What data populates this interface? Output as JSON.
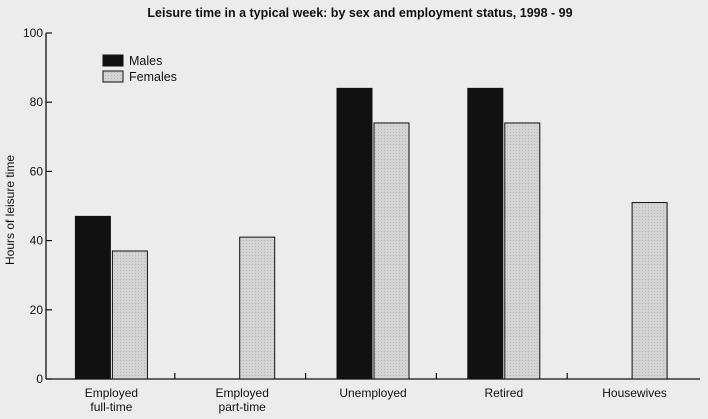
{
  "chart_data": {
    "type": "bar",
    "title": "Leisure time in a typical week: by sex and employment status, 1998 - 99",
    "xlabel": "",
    "ylabel": "Hours of leisure time",
    "ylim": [
      0,
      100
    ],
    "yticks": [
      0,
      20,
      40,
      60,
      80,
      100
    ],
    "grid": false,
    "legend_position": "top-left",
    "categories": [
      [
        "Employed",
        "full-time"
      ],
      [
        "Employed",
        "part-time"
      ],
      [
        "Unemployed"
      ],
      [
        "Retired"
      ],
      [
        "Housewives"
      ]
    ],
    "series": [
      {
        "name": "Males",
        "color": "#111111",
        "values": [
          47,
          null,
          84,
          84,
          null
        ]
      },
      {
        "name": "Females",
        "color": "#d4d4d4",
        "values": [
          37,
          41,
          74,
          74,
          51
        ]
      }
    ]
  }
}
